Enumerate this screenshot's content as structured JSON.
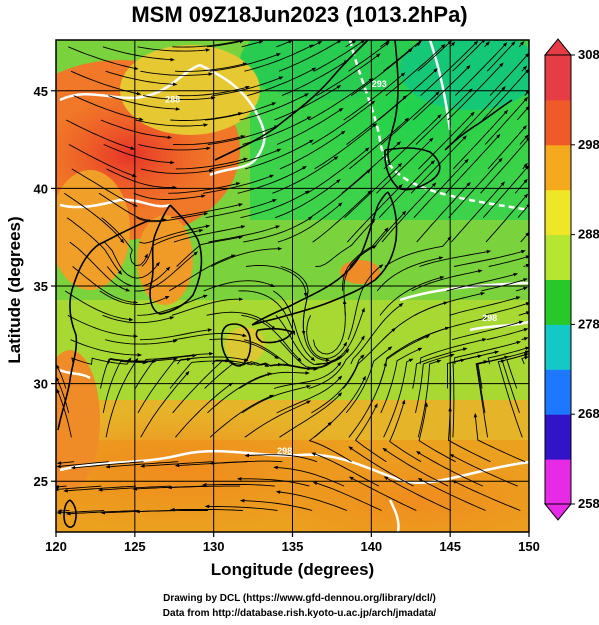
{
  "title": "MSM 09Z18Jun2023 (1013.2hPa)",
  "chart_data": {
    "type": "heatmap",
    "variable": "temperature with wind streamlines",
    "xlabel": "Longitude (degrees)",
    "ylabel": "Latitude  (degrees)",
    "xlim": [
      120,
      150
    ],
    "ylim": [
      22.4,
      47.6
    ],
    "x_ticks": [
      120,
      125,
      130,
      135,
      140,
      145,
      150
    ],
    "y_ticks": [
      25,
      30,
      35,
      40,
      45
    ],
    "grid": true,
    "colorbar": {
      "range": [
        258,
        308
      ],
      "tick_values": [
        258,
        268,
        278,
        288,
        298,
        308
      ],
      "tick_labels": [
        "258",
        "268",
        "278",
        "288",
        "298",
        "308"
      ],
      "colors": [
        "#e62ae6",
        "#3214c8",
        "#1e78ff",
        "#14c8c8",
        "#28c828",
        "#b4e632",
        "#f0e628",
        "#f5aa1e",
        "#f05a28",
        "#e63c46"
      ],
      "placement": "right"
    },
    "contour_labels": [
      {
        "text": "288",
        "lon": 127.4,
        "lat": 44.4
      },
      {
        "text": "293",
        "lon": 140.5,
        "lat": 45.2
      },
      {
        "text": "298",
        "lon": 134.5,
        "lat": 26.4
      },
      {
        "text": "298",
        "lon": 147.5,
        "lat": 33.2
      }
    ]
  },
  "credits": {
    "line1": "Drawing by DCL (https://www.gfd-dennou.org/library/dcl/)",
    "line2": "Data from http://database.rish.kyoto-u.ac.jp/arch/jmadata/"
  },
  "colors": {
    "land_outline": "#000000",
    "contour": "#ffffff",
    "streamline": "#000000"
  }
}
